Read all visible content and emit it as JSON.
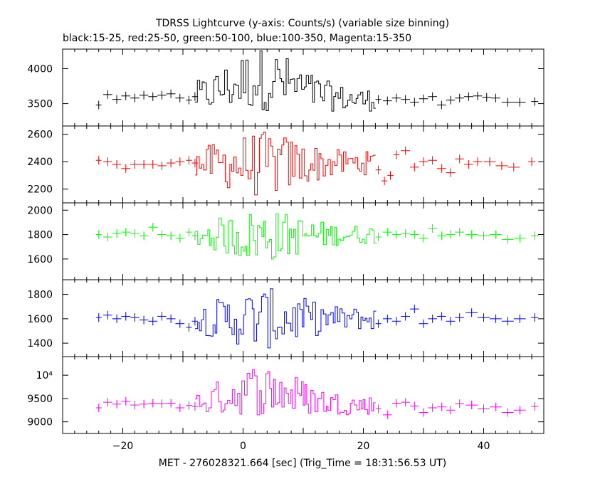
{
  "chart_data": {
    "type": "line",
    "title": "TDRSS Lightcurve (y-axis: Counts/s) (variable size binning)",
    "subtitle": "black:15-25, red:25-50, green:50-100, blue:100-350, Magenta:15-350",
    "xlabel": "MET - 276028321.664 [sec] (Trig_Time = 18:31:56.53 UT)",
    "xlim": [
      -30,
      50
    ],
    "x_ticks": [
      -20,
      0,
      20,
      40
    ],
    "panels": [
      {
        "name": "15-25",
        "color": "#000000",
        "ylim": [
          3180,
          4280
        ],
        "y_ticks": [
          3500,
          4000
        ],
        "y_tick_labels": [
          "3500",
          "4000"
        ],
        "base": 3550,
        "burst_center": 3850,
        "burst_amp": 380,
        "pre_pts": [
          [
            -24,
            3480
          ],
          [
            -22.5,
            3630
          ],
          [
            -21,
            3560
          ],
          [
            -19.5,
            3610
          ],
          [
            -18,
            3580
          ],
          [
            -16.5,
            3620
          ],
          [
            -15,
            3600
          ],
          [
            -13.5,
            3620
          ],
          [
            -12,
            3640
          ],
          [
            -10.5,
            3580
          ],
          [
            -9,
            3550
          ],
          [
            -8,
            3600
          ]
        ],
        "post_pts": [
          [
            22.5,
            3560
          ],
          [
            24,
            3540
          ],
          [
            25.5,
            3580
          ],
          [
            27,
            3560
          ],
          [
            28.5,
            3520
          ],
          [
            30,
            3570
          ],
          [
            31.5,
            3600
          ],
          [
            33,
            3480
          ],
          [
            34.5,
            3550
          ],
          [
            36,
            3580
          ],
          [
            37.5,
            3600
          ],
          [
            39,
            3610
          ],
          [
            40.5,
            3590
          ],
          [
            42,
            3580
          ],
          [
            44,
            3520
          ],
          [
            46,
            3520
          ],
          [
            48.5,
            3530
          ]
        ]
      },
      {
        "name": "25-50",
        "color": "#ff0000",
        "ylim": [
          2100,
          2660
        ],
        "y_ticks": [
          2200,
          2400,
          2600
        ],
        "y_tick_labels": [
          "2200",
          "2400",
          "2600"
        ],
        "base": 2390,
        "burst_center": 2380,
        "burst_amp": 200,
        "pre_pts": [
          [
            -24,
            2410
          ],
          [
            -22.5,
            2400
          ],
          [
            -21,
            2380
          ],
          [
            -19.5,
            2350
          ],
          [
            -18,
            2380
          ],
          [
            -16.5,
            2380
          ],
          [
            -15,
            2380
          ],
          [
            -13.5,
            2370
          ],
          [
            -12,
            2390
          ],
          [
            -10.5,
            2400
          ],
          [
            -9,
            2410
          ],
          [
            -8,
            2390
          ]
        ],
        "post_pts": [
          [
            22.5,
            2340
          ],
          [
            23.5,
            2260
          ],
          [
            24.5,
            2300
          ],
          [
            25.5,
            2450
          ],
          [
            27,
            2480
          ],
          [
            28.5,
            2360
          ],
          [
            30,
            2400
          ],
          [
            31.5,
            2410
          ],
          [
            33,
            2350
          ],
          [
            34.5,
            2320
          ],
          [
            36,
            2420
          ],
          [
            37.5,
            2380
          ],
          [
            39,
            2400
          ],
          [
            41,
            2400
          ],
          [
            43,
            2370
          ],
          [
            45,
            2360
          ],
          [
            48,
            2400
          ]
        ]
      },
      {
        "name": "50-100",
        "color": "#00ff00",
        "ylim": [
          1430,
          2060
        ],
        "y_ticks": [
          1600,
          1800,
          2000
        ],
        "y_tick_labels": [
          "1600",
          "1800",
          "2000"
        ],
        "base": 1800,
        "burst_center": 1790,
        "burst_amp": 180,
        "pre_pts": [
          [
            -24,
            1800
          ],
          [
            -22.5,
            1780
          ],
          [
            -21,
            1810
          ],
          [
            -19.5,
            1820
          ],
          [
            -18,
            1810
          ],
          [
            -16.5,
            1790
          ],
          [
            -15,
            1860
          ],
          [
            -13.5,
            1800
          ],
          [
            -12,
            1790
          ],
          [
            -10.5,
            1770
          ],
          [
            -9,
            1820
          ],
          [
            -8,
            1790
          ]
        ],
        "post_pts": [
          [
            22.5,
            1780
          ],
          [
            24,
            1820
          ],
          [
            25.5,
            1800
          ],
          [
            27,
            1810
          ],
          [
            28.5,
            1800
          ],
          [
            30,
            1770
          ],
          [
            31.5,
            1850
          ],
          [
            33,
            1790
          ],
          [
            34.5,
            1800
          ],
          [
            36,
            1820
          ],
          [
            38,
            1800
          ],
          [
            40,
            1790
          ],
          [
            42,
            1800
          ],
          [
            44,
            1760
          ],
          [
            46,
            1770
          ],
          [
            48.5,
            1790
          ]
        ]
      },
      {
        "name": "100-350",
        "color": "#0000ff",
        "ylim": [
          1290,
          1920
        ],
        "y_ticks": [
          1400,
          1600,
          1800
        ],
        "y_tick_labels": [
          "1400",
          "1600",
          "1800"
        ],
        "base": 1600,
        "burst_center": 1600,
        "burst_amp": 210,
        "pre_pts": [
          [
            -24,
            1610
          ],
          [
            -22.5,
            1630
          ],
          [
            -21,
            1600
          ],
          [
            -19.5,
            1620
          ],
          [
            -18,
            1610
          ],
          [
            -16.5,
            1590
          ],
          [
            -15,
            1580
          ],
          [
            -13.5,
            1620
          ],
          [
            -12,
            1600
          ],
          [
            -10.5,
            1560
          ],
          [
            -9,
            1530
          ],
          [
            -8,
            1580
          ]
        ],
        "post_pts": [
          [
            22.5,
            1560
          ],
          [
            24,
            1600
          ],
          [
            25.5,
            1580
          ],
          [
            27,
            1620
          ],
          [
            28.5,
            1680
          ],
          [
            30,
            1560
          ],
          [
            31.5,
            1600
          ],
          [
            33,
            1620
          ],
          [
            34.5,
            1580
          ],
          [
            36,
            1610
          ],
          [
            38,
            1650
          ],
          [
            40,
            1610
          ],
          [
            42,
            1600
          ],
          [
            44,
            1580
          ],
          [
            46,
            1600
          ],
          [
            48.5,
            1610
          ]
        ]
      },
      {
        "name": "15-350",
        "color": "#ff00ff",
        "ylim": [
          8750,
          10400
        ],
        "y_ticks": [
          9000,
          9500,
          10000
        ],
        "y_tick_labels": [
          "9000",
          "9500",
          "10⁴"
        ],
        "base": 9350,
        "burst_center": 9700,
        "burst_amp": 470,
        "pre_pts": [
          [
            -24,
            9300
          ],
          [
            -22.5,
            9420
          ],
          [
            -21,
            9380
          ],
          [
            -19.5,
            9440
          ],
          [
            -18,
            9360
          ],
          [
            -16.5,
            9380
          ],
          [
            -15,
            9400
          ],
          [
            -13.5,
            9390
          ],
          [
            -12,
            9400
          ],
          [
            -10.5,
            9300
          ],
          [
            -9,
            9350
          ],
          [
            -8,
            9330
          ]
        ],
        "post_pts": [
          [
            22.5,
            9280
          ],
          [
            24,
            9150
          ],
          [
            25.5,
            9400
          ],
          [
            27,
            9420
          ],
          [
            28.5,
            9340
          ],
          [
            30,
            9200
          ],
          [
            31.5,
            9300
          ],
          [
            33,
            9320
          ],
          [
            34.5,
            9250
          ],
          [
            36,
            9390
          ],
          [
            38,
            9360
          ],
          [
            40,
            9280
          ],
          [
            42,
            9320
          ],
          [
            44,
            9200
          ],
          [
            46,
            9250
          ],
          [
            48.5,
            9330
          ]
        ]
      }
    ],
    "burst_t0": -8,
    "burst_t1": 22,
    "grid": false,
    "legend": "none"
  }
}
